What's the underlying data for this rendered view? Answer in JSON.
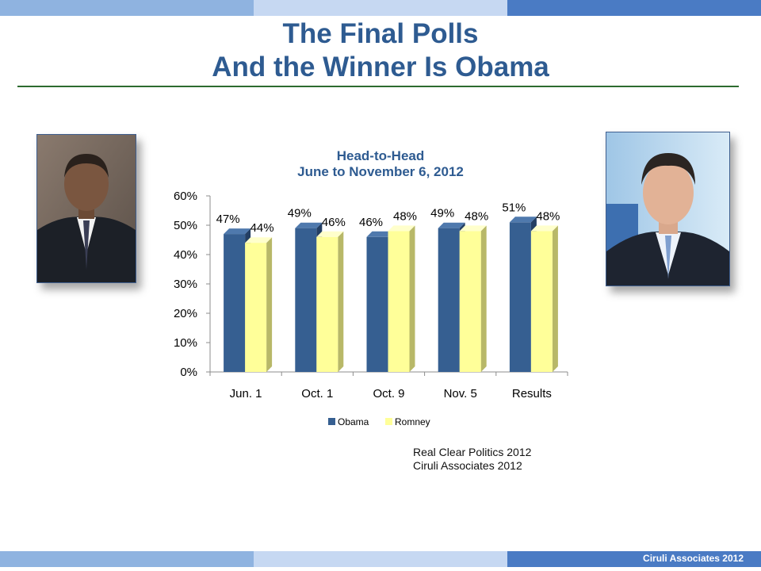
{
  "slide": {
    "title_line1": "The Final Polls",
    "title_line2": "And the Winner Is Obama",
    "source_line1": "Real Clear Politics 2012",
    "source_line2": "Ciruli  Associates 2012",
    "footer": "Ciruli Associates 2012"
  },
  "photos": {
    "left": "obama-portrait",
    "right": "romney-portrait"
  },
  "colors": {
    "obama": "#365f91",
    "romney": "#ffff99",
    "title": "#2e5b91"
  },
  "chart_data": {
    "type": "bar",
    "title": "Head-to-Head",
    "subtitle": "June to November 6, 2012",
    "categories": [
      "Jun. 1",
      "Oct. 1",
      "Oct. 9",
      "Nov. 5",
      "Results"
    ],
    "series": [
      {
        "name": "Obama",
        "values": [
          47,
          49,
          46,
          49,
          51
        ]
      },
      {
        "name": "Romney",
        "values": [
          44,
          46,
          48,
          48,
          48
        ]
      }
    ],
    "data_labels": [
      [
        "47%",
        "49%",
        "46%",
        "49%",
        "51%"
      ],
      [
        "44%",
        "46%",
        "48%",
        "48%",
        "48%"
      ]
    ],
    "yticks": [
      "0%",
      "10%",
      "20%",
      "30%",
      "40%",
      "50%",
      "60%"
    ],
    "ylim": [
      0,
      60
    ],
    "legend": "bottom",
    "grid": false
  }
}
